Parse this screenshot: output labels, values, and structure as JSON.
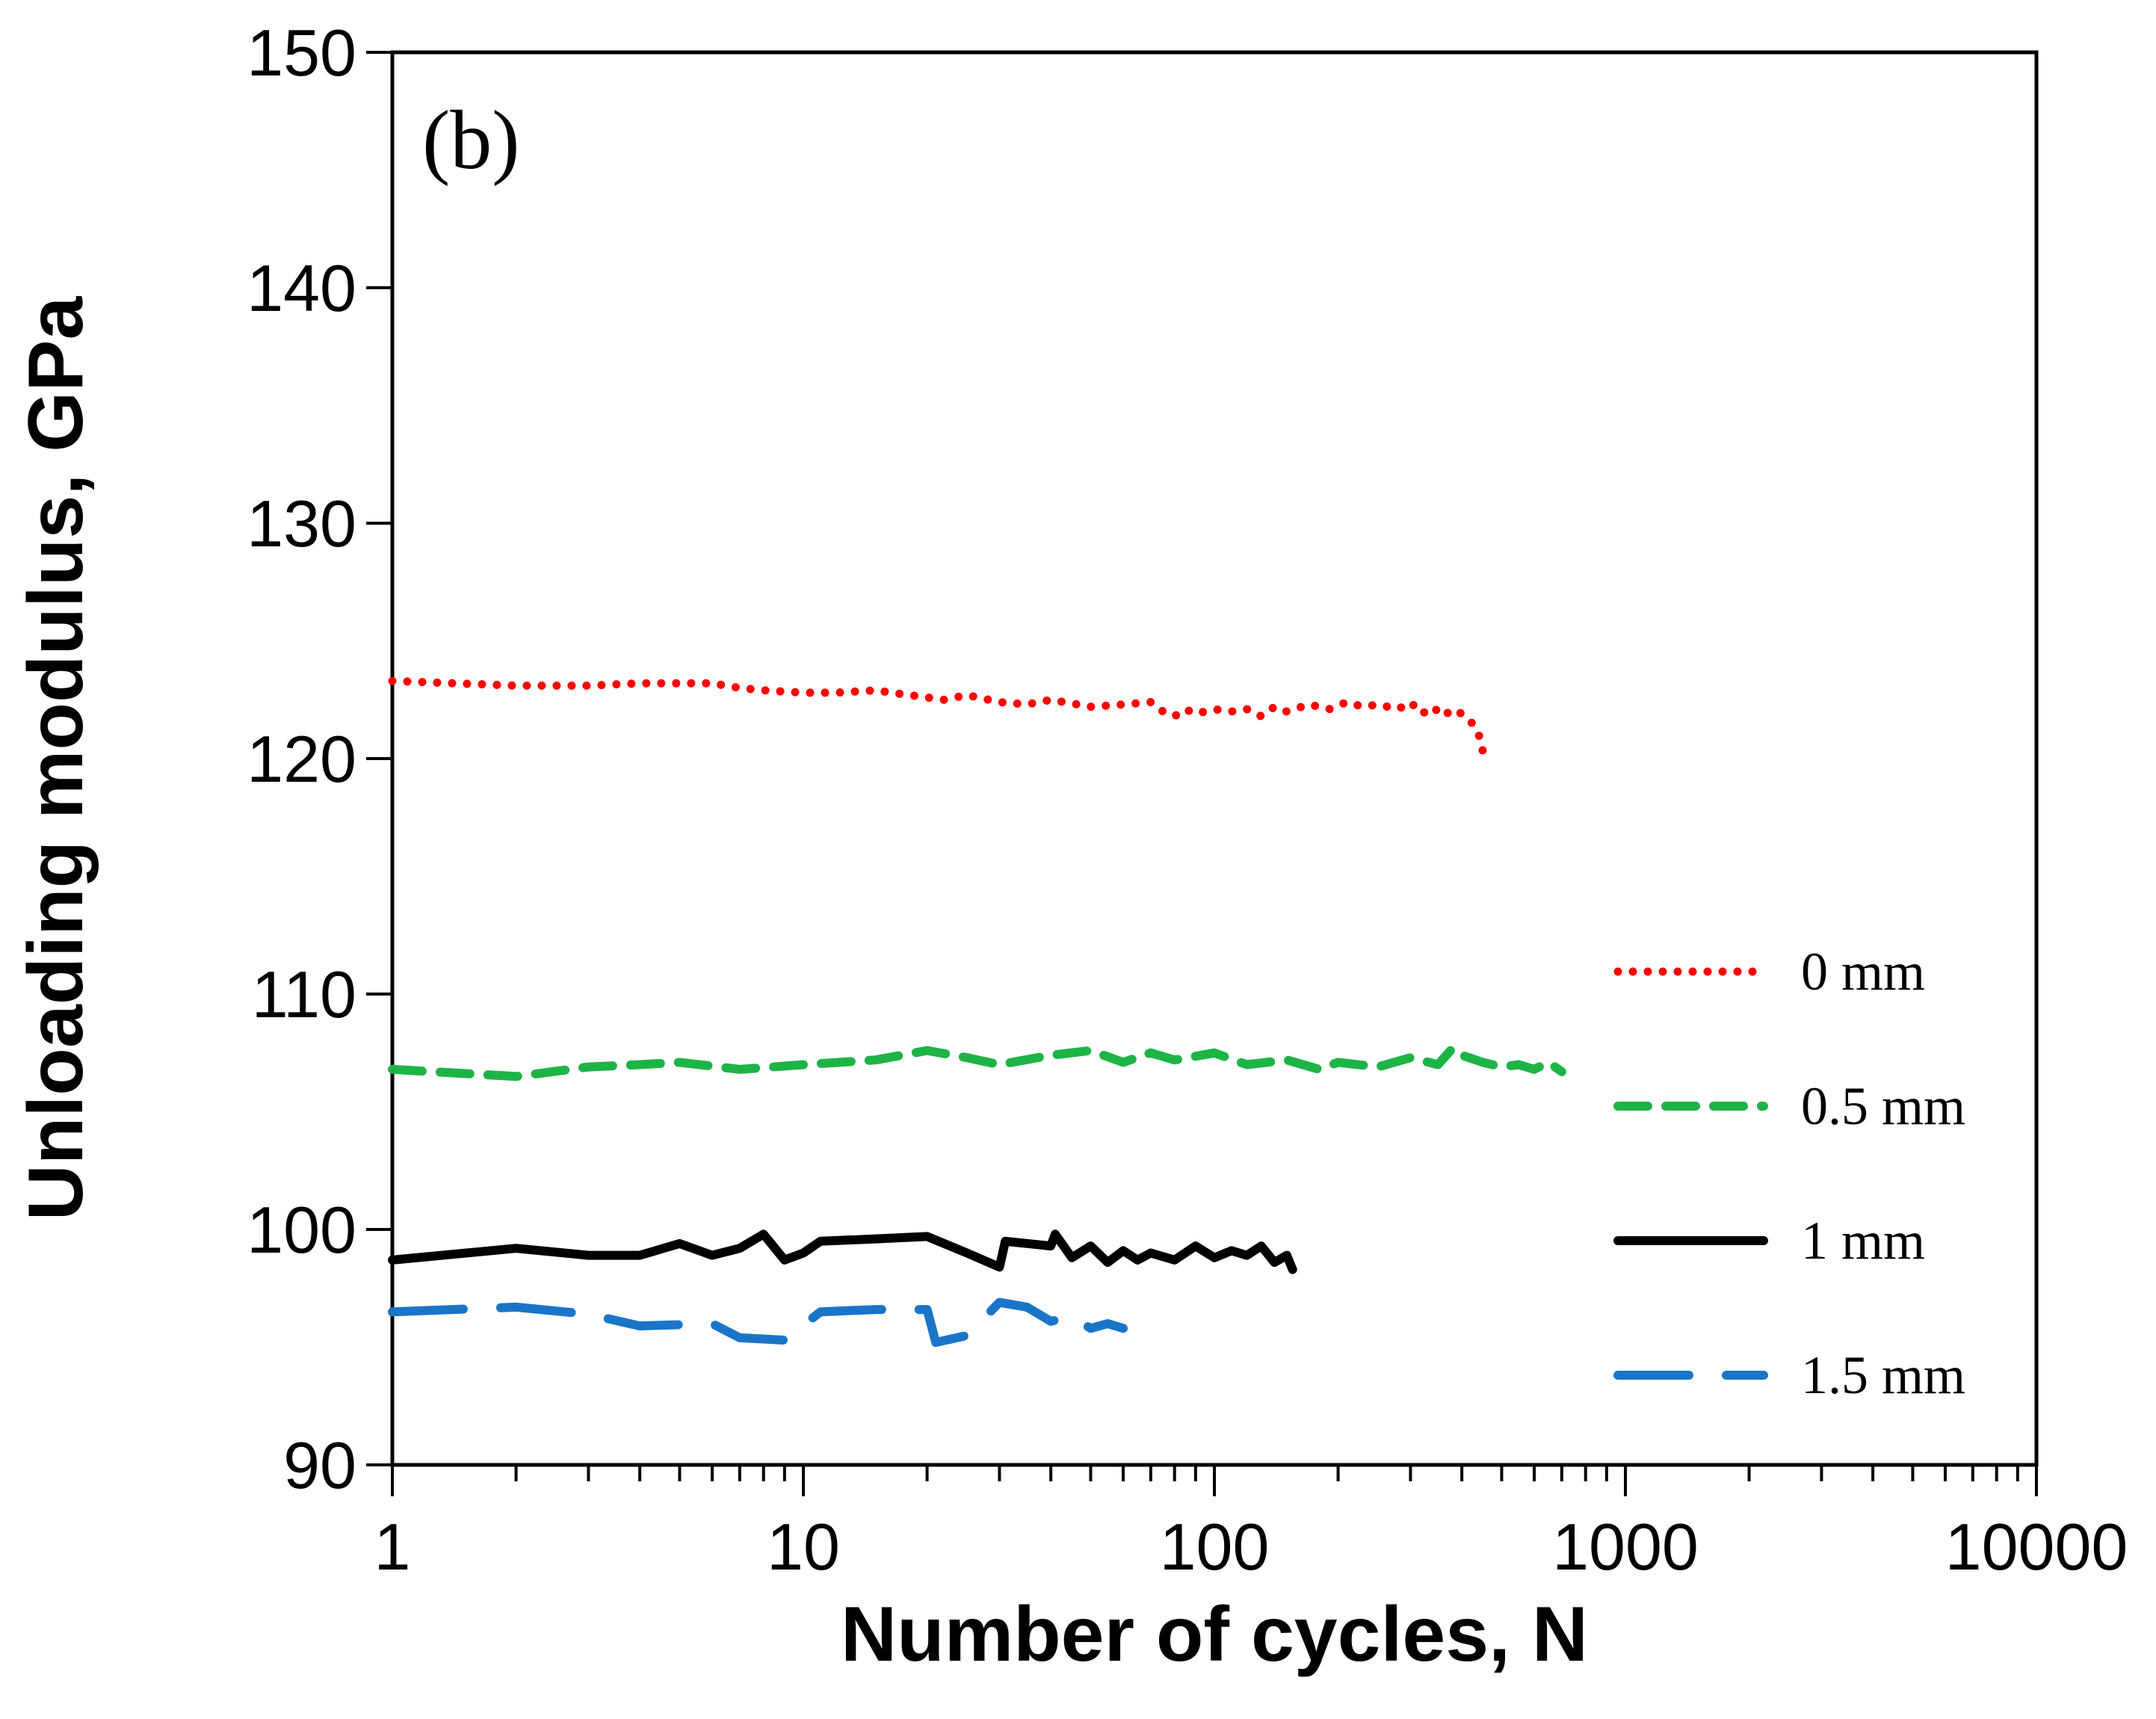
{
  "chart_data": {
    "type": "line",
    "title": "",
    "panel_label": "(b)",
    "xlabel": "Number of cycles, N",
    "ylabel": "Unloading modulus, GPa",
    "xscale": "log",
    "xlim": [
      1,
      10000
    ],
    "ylim": [
      90,
      150
    ],
    "xticks": [
      1,
      10,
      100,
      1000,
      10000
    ],
    "xtick_labels": [
      "1",
      "10",
      "100",
      "1000",
      "10000"
    ],
    "yticks": [
      90,
      100,
      110,
      120,
      130,
      140,
      150
    ],
    "ytick_labels": [
      "90",
      "100",
      "110",
      "120",
      "130",
      "140",
      "150"
    ],
    "grid": false,
    "legend_position": "right",
    "series": [
      {
        "name": "0 mm",
        "color": "#ff0000",
        "style": "dotted",
        "x": [
          1,
          2,
          3,
          4,
          5,
          6,
          7,
          8,
          10,
          12,
          15,
          18,
          20,
          22,
          25,
          30,
          35,
          40,
          50,
          60,
          70,
          75,
          80,
          85,
          90,
          100,
          110,
          120,
          130,
          140,
          150,
          170,
          190,
          210,
          230,
          250,
          280,
          300,
          320,
          340,
          360,
          380,
          400,
          420,
          440,
          450
        ],
        "y": [
          123.3,
          123.1,
          123.1,
          123.2,
          123.2,
          123.2,
          123.0,
          122.9,
          122.8,
          122.8,
          122.9,
          122.7,
          122.6,
          122.5,
          122.7,
          122.4,
          122.3,
          122.5,
          122.2,
          122.3,
          122.4,
          122.0,
          121.8,
          122.1,
          121.9,
          122.1,
          122.0,
          122.1,
          121.8,
          122.2,
          122.0,
          122.3,
          122.1,
          122.4,
          122.2,
          122.3,
          122.1,
          122.4,
          121.9,
          122.2,
          121.8,
          122.1,
          121.9,
          121.6,
          121.0,
          120.3
        ]
      },
      {
        "name": "0.5 mm",
        "color": "#1db446",
        "style": "dashed",
        "x": [
          1,
          2,
          3,
          4,
          5,
          7,
          10,
          15,
          20,
          25,
          30,
          40,
          50,
          60,
          70,
          80,
          100,
          120,
          150,
          180,
          200,
          250,
          300,
          350,
          380,
          400,
          450,
          500,
          550,
          600,
          650,
          700
        ],
        "y": [
          106.8,
          106.5,
          106.9,
          107.0,
          107.1,
          106.8,
          107.0,
          107.2,
          107.6,
          107.3,
          107.0,
          107.4,
          107.6,
          107.1,
          107.5,
          107.2,
          107.5,
          107.0,
          107.2,
          106.8,
          107.1,
          106.9,
          107.3,
          107.0,
          107.7,
          107.4,
          107.1,
          106.9,
          107.0,
          106.8,
          107.1,
          106.7
        ]
      },
      {
        "name": "1 mm",
        "color": "#000000",
        "style": "solid",
        "x": [
          1,
          2,
          3,
          4,
          5,
          6,
          7,
          8,
          9,
          10,
          11,
          15,
          20,
          25,
          30,
          31,
          40,
          41,
          45,
          50,
          55,
          60,
          65,
          70,
          80,
          90,
          100,
          110,
          120,
          130,
          140,
          150,
          155
        ],
        "y": [
          98.7,
          99.2,
          98.9,
          98.9,
          99.4,
          98.9,
          99.2,
          99.8,
          98.7,
          99.0,
          99.5,
          99.6,
          99.7,
          99.0,
          98.4,
          99.5,
          99.3,
          99.8,
          98.8,
          99.3,
          98.6,
          99.1,
          98.7,
          99.0,
          98.7,
          99.3,
          98.8,
          99.1,
          98.9,
          99.3,
          98.6,
          98.9,
          98.3
        ]
      },
      {
        "name": "1.5 mm",
        "color": "#1a75c9",
        "style": "longdash",
        "x": [
          1,
          2,
          3,
          4,
          6,
          7,
          9,
          11,
          15,
          20,
          21,
          25,
          30,
          35,
          40,
          45,
          50,
          55,
          60
        ],
        "y": [
          96.5,
          96.7,
          96.4,
          95.9,
          96.0,
          95.4,
          95.3,
          96.5,
          96.6,
          96.6,
          95.2,
          95.5,
          96.9,
          96.7,
          96.1,
          96.3,
          95.8,
          96.0,
          95.8
        ]
      }
    ]
  }
}
